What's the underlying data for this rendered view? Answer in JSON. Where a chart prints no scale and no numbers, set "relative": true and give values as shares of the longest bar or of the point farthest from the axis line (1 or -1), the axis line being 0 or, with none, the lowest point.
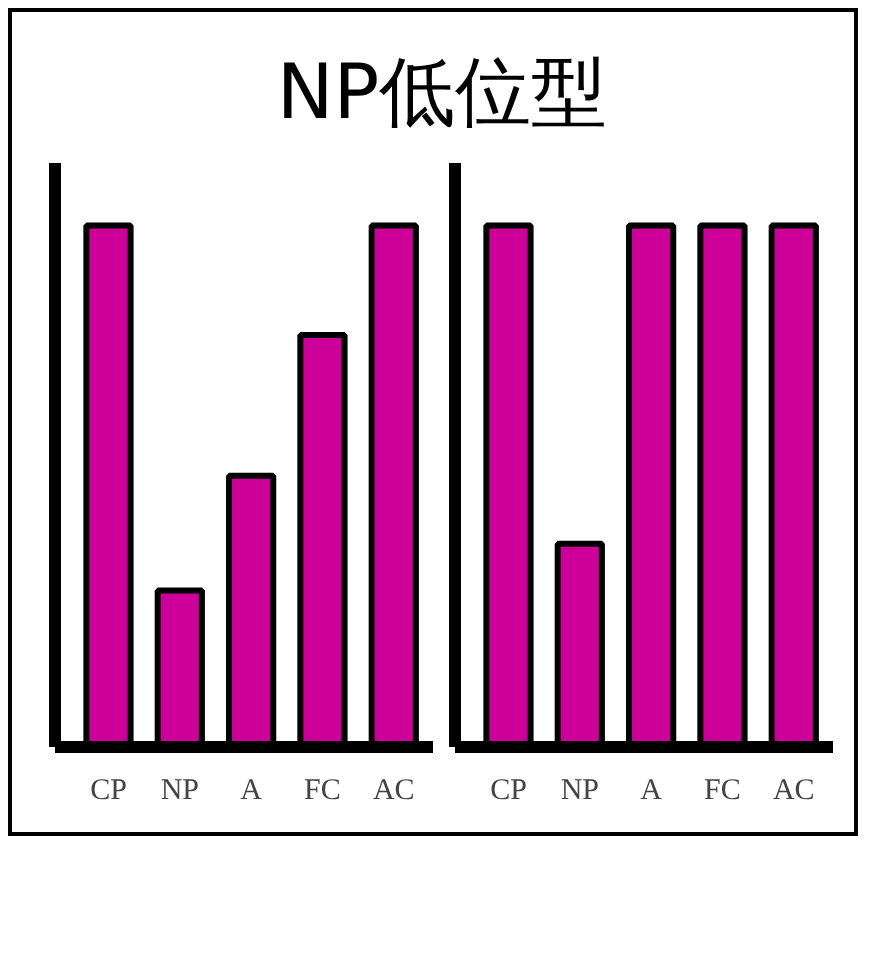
{
  "chart_data": [
    {
      "type": "bar",
      "title": "NP低位型",
      "categories": [
        "CP",
        "NP",
        "A",
        "FC",
        "AC"
      ],
      "relative": true,
      "tick_labels": "x",
      "series": [
        {
          "color": "#cc0099",
          "values": [
            1,
            0.3,
            0.52,
            0.79,
            1
          ]
        }
      ]
    },
    {
      "type": "bar",
      "categories": [
        "CP",
        "NP",
        "A",
        "FC",
        "AC"
      ],
      "relative": true,
      "tick_labels": "x",
      "series": [
        {
          "color": "#cc0099",
          "values": [
            1,
            0.39,
            1,
            1,
            1
          ]
        }
      ]
    }
  ]
}
